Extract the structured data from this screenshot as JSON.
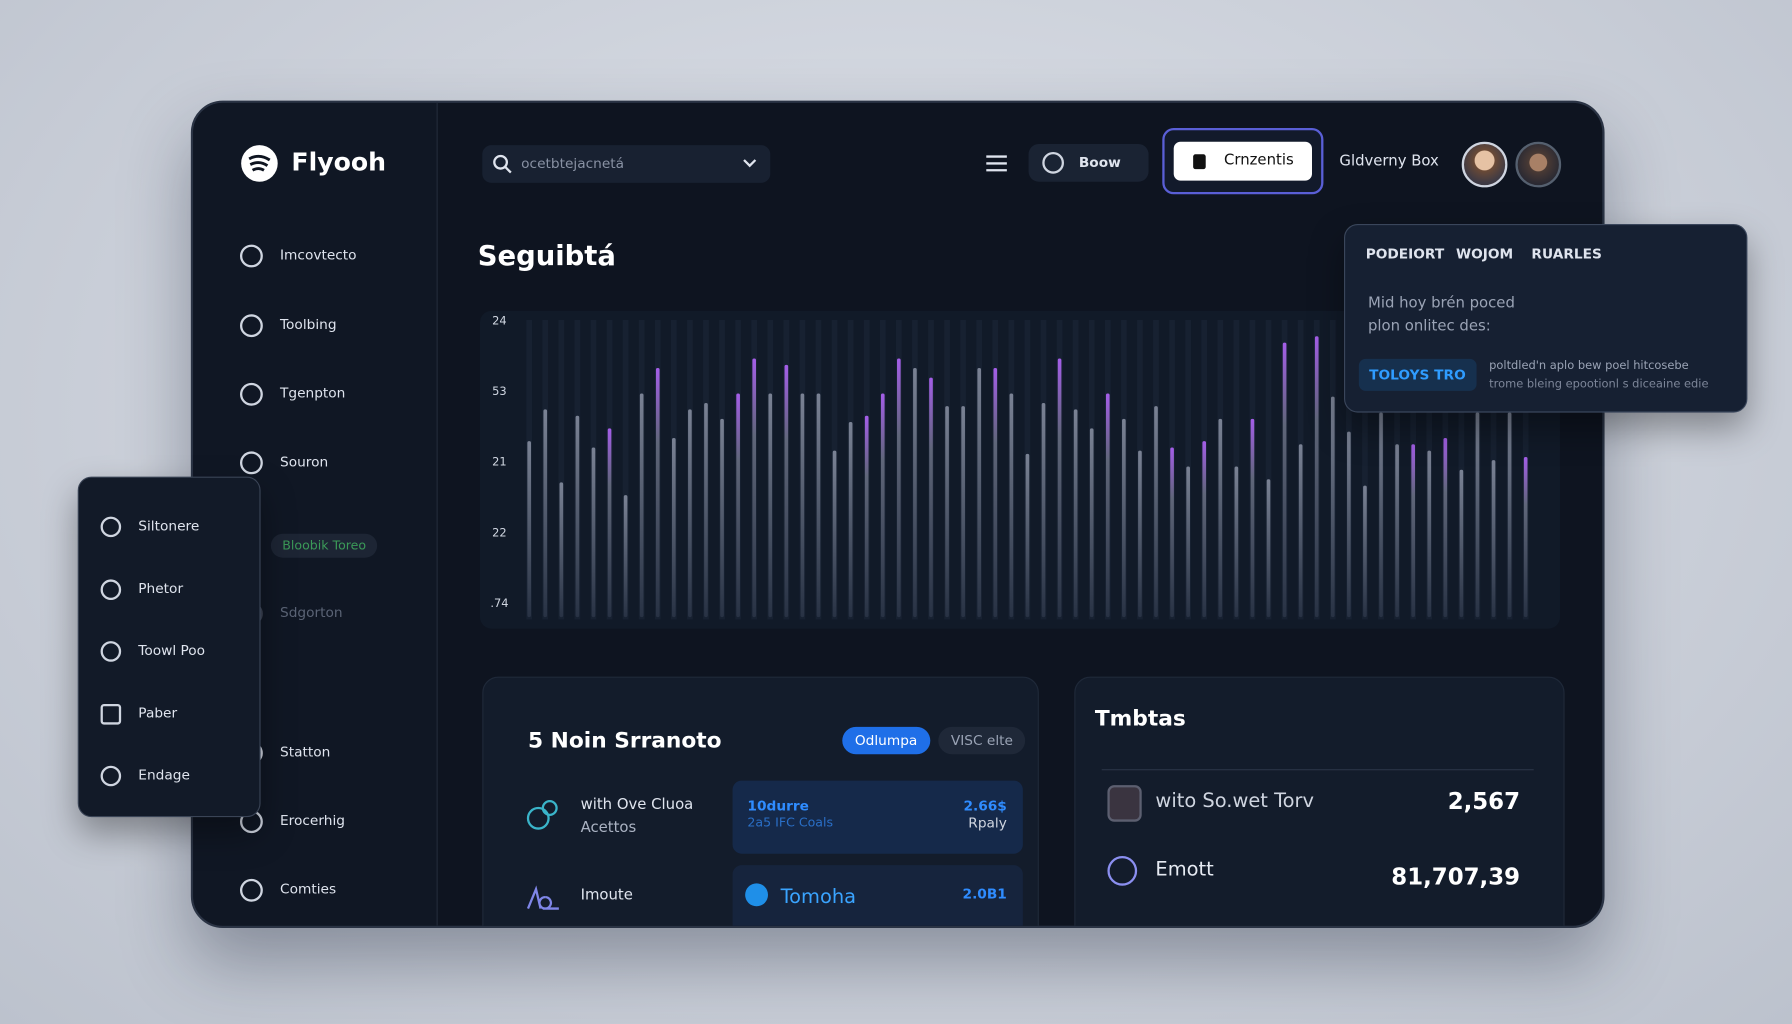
{
  "brand": "Flyooh",
  "search": "ocetbtejacnetá",
  "sidebar": [
    "Imcovtecto",
    "Toolbing",
    "Tgenpton",
    "Souron",
    "Bloobik Toreo",
    "Sdgorton",
    "Statton",
    "Erocerhig",
    "Comties"
  ],
  "flyout": [
    "Siltonere",
    "Phetor",
    "Toowl Poo",
    "Paber",
    "Endage"
  ],
  "topbar": {
    "button1": "Boow",
    "button2": "Crnzentis",
    "user": "Gldverny Box"
  },
  "page_title": "Seguibtá",
  "chart": {
    "type": "bar",
    "axis_labels": [
      "24",
      "53",
      "21",
      "22",
      ".74"
    ],
    "ylim": [
      0,
      100
    ],
    "series": [
      {
        "color": "#7a8294",
        "values": [
          59,
          69,
          46,
          67,
          57,
          null,
          42,
          74,
          null,
          60,
          69,
          71,
          66,
          null,
          null,
          74,
          null,
          74,
          74,
          56,
          65,
          null,
          null,
          null,
          82,
          null,
          70,
          70,
          82,
          null,
          74,
          55,
          71,
          null,
          69,
          63,
          null,
          66,
          56,
          70,
          null,
          51,
          null,
          66,
          51,
          null,
          47,
          null,
          58,
          null,
          73,
          62,
          45,
          68,
          58,
          null,
          56,
          null,
          50,
          68,
          53,
          68,
          null
        ]
      },
      {
        "color": "#a45ee8",
        "values": [
          null,
          null,
          null,
          null,
          null,
          63,
          null,
          null,
          82,
          null,
          null,
          null,
          null,
          74,
          85,
          null,
          83,
          null,
          null,
          null,
          null,
          67,
          74,
          85,
          null,
          79,
          null,
          null,
          null,
          82,
          null,
          null,
          null,
          85,
          null,
          null,
          74,
          null,
          null,
          null,
          57,
          null,
          59,
          null,
          null,
          66,
          null,
          90,
          null,
          92,
          null,
          null,
          null,
          null,
          null,
          58,
          null,
          60,
          null,
          null,
          null,
          null,
          54
        ]
      }
    ]
  },
  "popup": {
    "tabs": [
      "PODEIORT",
      "WOJOM",
      "RUARLES"
    ],
    "text": [
      "Mid hoy brén poced",
      "plon onlitec des:"
    ],
    "button": "TOLOYS TRO",
    "note": [
      "poltdled'n aplo bew poel hitcosebe",
      "trome bleing epootionl s diceaine edie"
    ]
  },
  "card1": {
    "title": "5 Noin Srranoto",
    "pills": [
      "Odlumpa",
      "VISC elte"
    ],
    "rows": [
      {
        "label": [
          "with Ove Cluoa",
          "Acettos"
        ],
        "tile": {
          "title": "10durre",
          "sub": "2a5 IFC Coals",
          "value": "2.66$",
          "note": "Rpaly"
        }
      },
      {
        "label": [
          "Imoute"
        ],
        "tile": {
          "title": "Tomoha",
          "value": "2.0B1"
        }
      }
    ]
  },
  "card2": {
    "title": "Tmbtas",
    "rows": [
      {
        "label": "wito So.wet Torv",
        "value": "2,567"
      },
      {
        "label": "Emott",
        "value": "81,707,39"
      }
    ]
  }
}
